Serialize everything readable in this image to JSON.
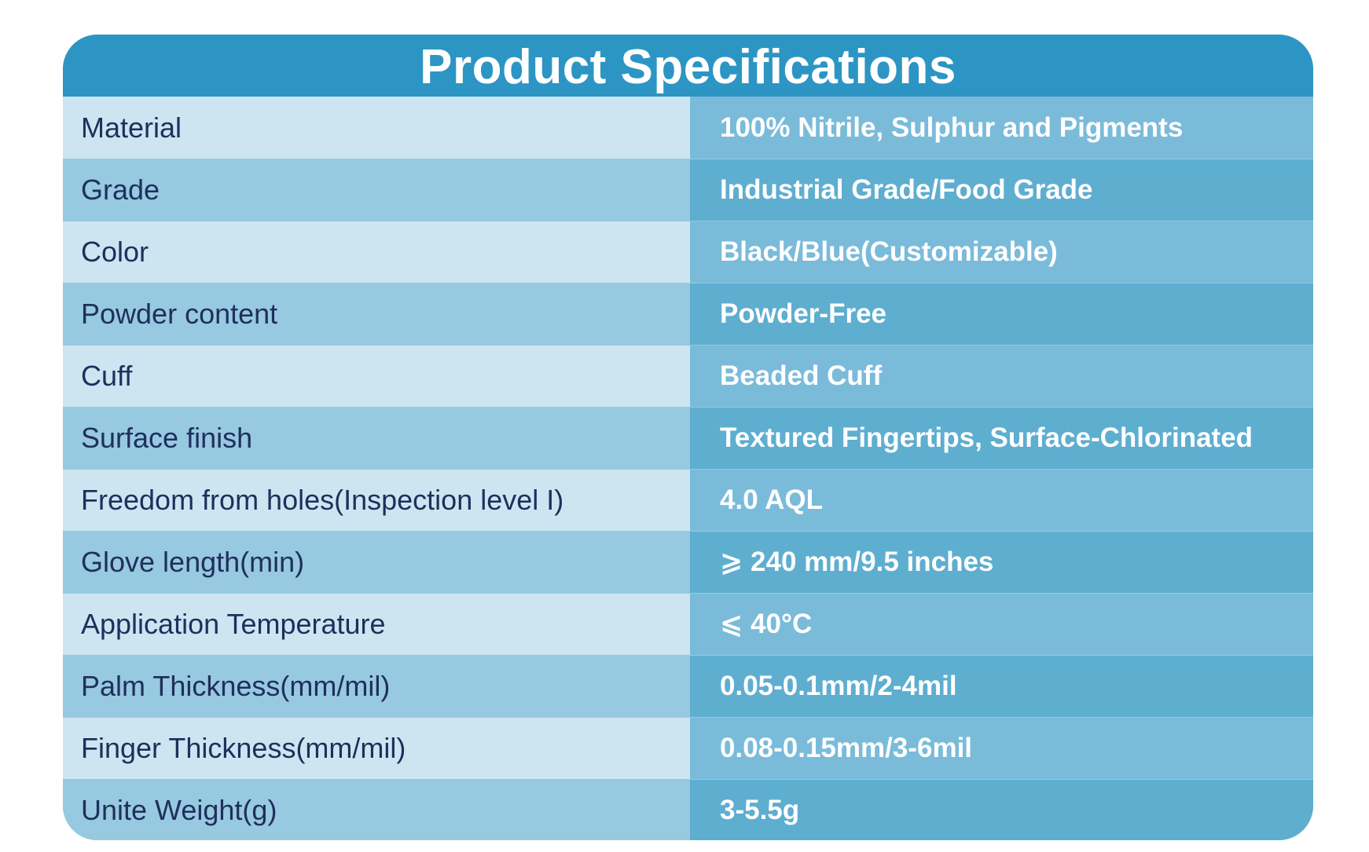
{
  "title": "Product Specifications",
  "rows": [
    {
      "label": "Material",
      "value": "100% Nitrile, Sulphur and Pigments"
    },
    {
      "label": "Grade",
      "value": "Industrial Grade/Food Grade"
    },
    {
      "label": "Color",
      "value": "Black/Blue(Customizable)"
    },
    {
      "label": "Powder content",
      "value": "Powder-Free"
    },
    {
      "label": "Cuff",
      "value": "Beaded Cuff"
    },
    {
      "label": "Surface finish",
      "value": "Textured Fingertips, Surface-Chlorinated"
    },
    {
      "label": "Freedom from holes(Inspection level I)",
      "value": "4.0 AQL"
    },
    {
      "label": "Glove length(min)",
      "value": "⩾ 240 mm/9.5 inches"
    },
    {
      "label": "Application Temperature",
      "value": "⩽ 40°C"
    },
    {
      "label": "Palm Thickness(mm/mil)",
      "value": "0.05-0.1mm/2-4mil"
    },
    {
      "label": "Finger Thickness(mm/mil)",
      "value": "0.08-0.15mm/3-6mil"
    },
    {
      "label": "Unite Weight(g)",
      "value": "3-5.5g"
    }
  ],
  "colors": {
    "header": "#2c95c4",
    "label_light": "#cde5f1",
    "label_dark": "#97c9e1",
    "value_light": "#7abbda",
    "value_dark": "#5eaed0",
    "label_text": "#1f2f5c",
    "value_text": "#ffffff"
  }
}
